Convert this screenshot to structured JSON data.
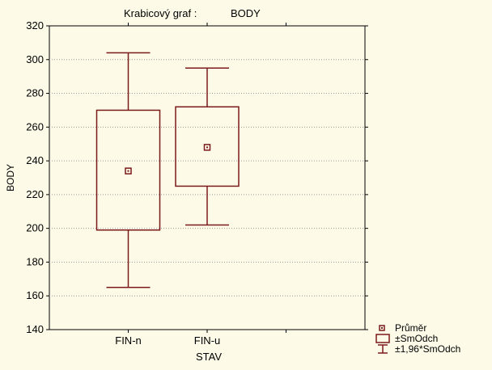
{
  "chart_data": {
    "type": "box",
    "title_prefix": "Krabicový  graf :",
    "title_variable": "BODY",
    "xlabel": "STAV",
    "ylabel": "BODY",
    "ylim": [
      140,
      320
    ],
    "yticks": [
      140,
      160,
      180,
      200,
      220,
      240,
      260,
      280,
      300,
      320
    ],
    "grid": true,
    "categories": [
      "FIN-n",
      "FIN-u"
    ],
    "boxes": [
      {
        "category": "FIN-n",
        "mean": 234,
        "box_low": 199,
        "box_high": 270,
        "whisker_low": 165,
        "whisker_high": 304
      },
      {
        "category": "FIN-u",
        "mean": 248,
        "box_low": 225,
        "box_high": 272,
        "whisker_low": 202,
        "whisker_high": 295
      }
    ],
    "legend": {
      "placement": "bottom-right",
      "items": [
        "Průměr",
        "±SmOdch",
        "±1,96*SmOdch"
      ]
    },
    "colors": {
      "box": "#7b1a1a",
      "background": "#fdfbe8",
      "grid": "#9a9a9a"
    }
  }
}
